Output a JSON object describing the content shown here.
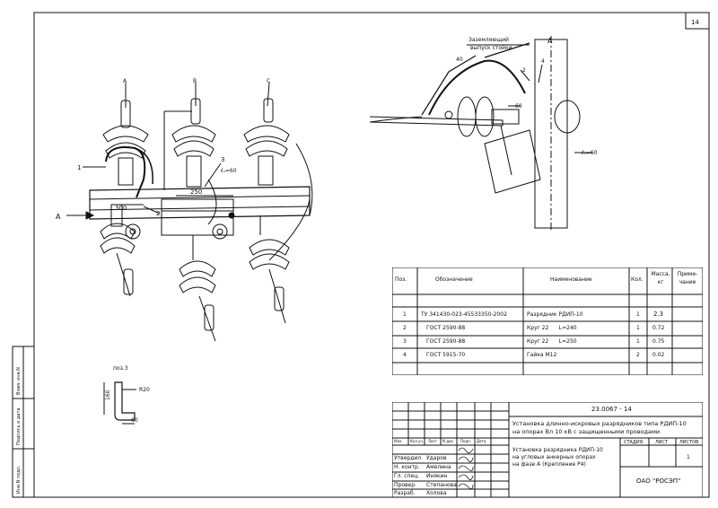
{
  "sheet": {
    "number": "14"
  },
  "drawing_main": {
    "phase_labels": [
      "A",
      "B",
      "C"
    ],
    "view_arrow": "A",
    "callouts": {
      "c1": "1",
      "c2": "2",
      "c3": "3"
    },
    "dims": {
      "d250": "250",
      "d300": "300",
      "lu": "ℓᵤ=60"
    }
  },
  "drawing_view": {
    "title": "A",
    "ground_label_1": "Заземляющий",
    "ground_label_2": "выпуск стойки",
    "callouts": {
      "c40": "40",
      "c2": "2",
      "c4": "4",
      "c60": "60",
      "lu": "ℓᵤ=60"
    }
  },
  "detail": {
    "title": "поз.3",
    "dim_160": "160",
    "dim_r20": "R20",
    "dim_60": "60"
  },
  "spec_table": {
    "headers": [
      "Поз.",
      "Обозначение",
      "Наименование",
      "Кол.",
      "Масса, кг",
      "Приме-чание"
    ],
    "rows": [
      {
        "pos": "1",
        "code": "ТУ 341430-023-45533350-2002",
        "name": "Разрядник РДИП-10",
        "qty": "1",
        "mass": "2.3",
        "note": ""
      },
      {
        "pos": "2",
        "code": "ГОСТ 2590-88",
        "name": "Круг 22      L=240",
        "qty": "1",
        "mass": "0.72",
        "note": ""
      },
      {
        "pos": "3",
        "code": "ГОСТ 2590-88",
        "name": "Круг 22      L=250",
        "qty": "1",
        "mass": "0.75",
        "note": ""
      },
      {
        "pos": "4",
        "code": "ГОСТ 5915-70",
        "name": "Гайка М12",
        "qty": "2",
        "mass": "0.02",
        "note": ""
      }
    ]
  },
  "title_block": {
    "doc_number": "23.0067 - 14",
    "title_line1": "Установка длинно-искровых разрядников типа РДИП-10",
    "title_line2": "на опорах Вл 10 кВ с защищенными проводами",
    "sub_line1": "Установка разрядника РДИП-10",
    "sub_line2": "на угловых анкерных опорах",
    "sub_line3": "на фазе А (Крепление Р4)",
    "col_headers": [
      "Изм.",
      "Кол.уч.",
      "Лист",
      "N док.",
      "Подп.",
      "Дата"
    ],
    "stage_label": "СТАДИЯ",
    "sheet_label": "ЛИСТ",
    "sheets_label": "ЛИСТОВ",
    "sheet_value": "1",
    "org": "ОАО \"РОСЭП\"",
    "roles": [
      {
        "role": "Утвердил",
        "name": "Ударов"
      },
      {
        "role": "Н. контр.",
        "name": "Амелина"
      },
      {
        "role": "Гл. спец.",
        "name": "Инякин"
      },
      {
        "role": "Провер.",
        "name": "Степанова"
      },
      {
        "role": "Разраб.",
        "name": "Холова"
      }
    ]
  },
  "side_stamp": {
    "col1": "Взам. инв.N",
    "col2": "Подпись и дата",
    "col3": "Инв.N подл."
  }
}
